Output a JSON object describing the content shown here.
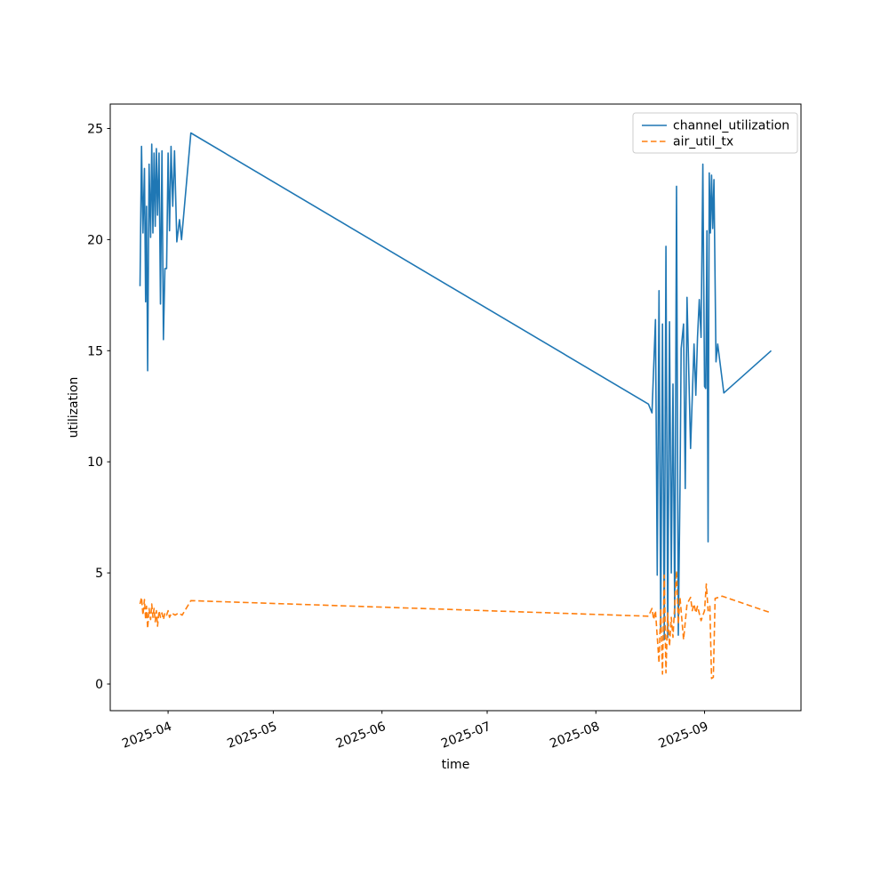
{
  "figure": {
    "background": "#ffffff"
  },
  "chart_data": {
    "type": "line",
    "title": "",
    "xlabel": "time",
    "ylabel": "utilization",
    "grid": false,
    "legend_position": "upper right",
    "xlim": [
      "2025-03-15T12:00",
      "2025-09-28T12:00"
    ],
    "ylim": [
      -1.2,
      26.1
    ],
    "x_ticks": [
      {
        "date": "2025-04-01T00:00",
        "label": "2025-04"
      },
      {
        "date": "2025-05-01T00:00",
        "label": "2025-05"
      },
      {
        "date": "2025-06-01T00:00",
        "label": "2025-06"
      },
      {
        "date": "2025-07-01T00:00",
        "label": "2025-07"
      },
      {
        "date": "2025-08-01T00:00",
        "label": "2025-08"
      },
      {
        "date": "2025-09-01T00:00",
        "label": "2025-09"
      }
    ],
    "y_ticks": [
      {
        "value": 0,
        "label": "0"
      },
      {
        "value": 5,
        "label": "5"
      },
      {
        "value": 10,
        "label": "10"
      },
      {
        "value": 15,
        "label": "15"
      },
      {
        "value": 20,
        "label": "20"
      },
      {
        "value": 25,
        "label": "25"
      }
    ],
    "series": [
      {
        "name": "channel_utilization",
        "color": "#1f77b4",
        "style": "solid",
        "points": [
          [
            "2025-03-24T00:00",
            17.9
          ],
          [
            "2025-03-24T10:00",
            24.2
          ],
          [
            "2025-03-24T20:00",
            20.3
          ],
          [
            "2025-03-25T06:00",
            23.2
          ],
          [
            "2025-03-25T14:00",
            17.2
          ],
          [
            "2025-03-25T20:00",
            21.5
          ],
          [
            "2025-03-26T04:00",
            14.1
          ],
          [
            "2025-03-26T14:00",
            23.4
          ],
          [
            "2025-03-27T00:00",
            20.1
          ],
          [
            "2025-03-27T08:00",
            24.3
          ],
          [
            "2025-03-27T16:00",
            20.3
          ],
          [
            "2025-03-28T00:00",
            23.9
          ],
          [
            "2025-03-28T08:00",
            20.6
          ],
          [
            "2025-03-28T16:00",
            24.1
          ],
          [
            "2025-03-29T00:00",
            21.1
          ],
          [
            "2025-03-29T10:00",
            23.9
          ],
          [
            "2025-03-29T20:00",
            17.1
          ],
          [
            "2025-03-30T06:00",
            24.0
          ],
          [
            "2025-03-30T16:00",
            15.5
          ],
          [
            "2025-03-31T02:00",
            18.7
          ],
          [
            "2025-03-31T14:00",
            18.7
          ],
          [
            "2025-04-01T00:00",
            23.9
          ],
          [
            "2025-04-01T10:00",
            20.4
          ],
          [
            "2025-04-01T20:00",
            24.2
          ],
          [
            "2025-04-02T08:00",
            21.5
          ],
          [
            "2025-04-02T20:00",
            24.0
          ],
          [
            "2025-04-03T12:00",
            19.9
          ],
          [
            "2025-04-04T06:00",
            20.9
          ],
          [
            "2025-04-04T20:00",
            20.0
          ],
          [
            "2025-04-07T12:00",
            24.8
          ],
          [
            "2025-08-16T00:00",
            12.6
          ],
          [
            "2025-08-17T00:00",
            12.2
          ],
          [
            "2025-08-18T00:00",
            16.4
          ],
          [
            "2025-08-18T12:00",
            4.9
          ],
          [
            "2025-08-19T00:00",
            17.7
          ],
          [
            "2025-08-19T12:00",
            2.4
          ],
          [
            "2025-08-20T00:00",
            16.2
          ],
          [
            "2025-08-20T12:00",
            2.0
          ],
          [
            "2025-08-21T00:00",
            19.7
          ],
          [
            "2025-08-21T12:00",
            2.1
          ],
          [
            "2025-08-22T00:00",
            16.3
          ],
          [
            "2025-08-22T12:00",
            5.0
          ],
          [
            "2025-08-23T00:00",
            13.5
          ],
          [
            "2025-08-23T12:00",
            3.0
          ],
          [
            "2025-08-24T00:00",
            22.4
          ],
          [
            "2025-08-24T12:00",
            2.2
          ],
          [
            "2025-08-25T00:00",
            8.8
          ],
          [
            "2025-08-25T08:00",
            15.1
          ],
          [
            "2025-08-26T00:00",
            16.2
          ],
          [
            "2025-08-26T12:00",
            8.8
          ],
          [
            "2025-08-27T00:00",
            17.4
          ],
          [
            "2025-08-28T00:00",
            10.6
          ],
          [
            "2025-08-29T00:00",
            15.3
          ],
          [
            "2025-08-29T12:00",
            13.0
          ],
          [
            "2025-08-30T00:00",
            15.6
          ],
          [
            "2025-08-30T12:00",
            17.3
          ],
          [
            "2025-08-31T00:00",
            15.6
          ],
          [
            "2025-08-31T12:00",
            23.4
          ],
          [
            "2025-09-01T00:00",
            13.4
          ],
          [
            "2025-09-01T08:00",
            13.3
          ],
          [
            "2025-09-01T16:00",
            20.4
          ],
          [
            "2025-09-02T00:00",
            6.4
          ],
          [
            "2025-09-02T08:00",
            23.0
          ],
          [
            "2025-09-02T16:00",
            20.3
          ],
          [
            "2025-09-03T00:00",
            22.9
          ],
          [
            "2025-09-03T08:00",
            20.5
          ],
          [
            "2025-09-03T16:00",
            22.7
          ],
          [
            "2025-09-04T06:00",
            14.5
          ],
          [
            "2025-09-04T18:00",
            15.3
          ],
          [
            "2025-09-06T12:00",
            13.1
          ],
          [
            "2025-09-20T00:00",
            15.0
          ]
        ]
      },
      {
        "name": "air_util_tx",
        "color": "#ff7f0e",
        "style": "dashed",
        "points": [
          [
            "2025-03-24T00:00",
            3.6
          ],
          [
            "2025-03-24T10:00",
            3.9
          ],
          [
            "2025-03-24T20:00",
            3.1
          ],
          [
            "2025-03-25T06:00",
            3.8
          ],
          [
            "2025-03-25T14:00",
            2.9
          ],
          [
            "2025-03-25T20:00",
            3.5
          ],
          [
            "2025-03-26T04:00",
            2.5
          ],
          [
            "2025-03-26T14:00",
            3.4
          ],
          [
            "2025-03-27T00:00",
            2.9
          ],
          [
            "2025-03-27T08:00",
            3.6
          ],
          [
            "2025-03-27T16:00",
            3.0
          ],
          [
            "2025-03-28T00:00",
            3.4
          ],
          [
            "2025-03-28T08:00",
            2.8
          ],
          [
            "2025-03-28T16:00",
            3.3
          ],
          [
            "2025-03-29T00:00",
            2.6
          ],
          [
            "2025-03-29T10:00",
            3.3
          ],
          [
            "2025-03-29T20:00",
            3.0
          ],
          [
            "2025-03-30T06:00",
            3.2
          ],
          [
            "2025-03-30T16:00",
            2.9
          ],
          [
            "2025-03-31T02:00",
            3.2
          ],
          [
            "2025-03-31T14:00",
            3.1
          ],
          [
            "2025-04-01T00:00",
            3.3
          ],
          [
            "2025-04-01T10:00",
            3.0
          ],
          [
            "2025-04-02T00:00",
            3.2
          ],
          [
            "2025-04-03T00:00",
            3.1
          ],
          [
            "2025-04-04T00:00",
            3.2
          ],
          [
            "2025-04-05T00:00",
            3.1
          ],
          [
            "2025-04-07T12:00",
            3.75
          ],
          [
            "2025-08-16T00:00",
            3.05
          ],
          [
            "2025-08-17T00:00",
            3.4
          ],
          [
            "2025-08-17T12:00",
            2.9
          ],
          [
            "2025-08-18T00:00",
            3.3
          ],
          [
            "2025-08-19T00:00",
            0.95
          ],
          [
            "2025-08-19T12:00",
            3.4
          ],
          [
            "2025-08-20T00:00",
            0.45
          ],
          [
            "2025-08-20T12:00",
            4.9
          ],
          [
            "2025-08-21T00:00",
            0.5
          ],
          [
            "2025-08-21T12:00",
            3.2
          ],
          [
            "2025-08-22T00:00",
            1.7
          ],
          [
            "2025-08-22T12:00",
            3.0
          ],
          [
            "2025-08-23T00:00",
            2.1
          ],
          [
            "2025-08-24T00:00",
            5.1
          ],
          [
            "2025-08-24T12:00",
            2.7
          ],
          [
            "2025-08-25T00:00",
            3.9
          ],
          [
            "2025-08-26T00:00",
            2.0
          ],
          [
            "2025-08-27T00:00",
            3.6
          ],
          [
            "2025-08-28T00:00",
            3.9
          ],
          [
            "2025-08-28T12:00",
            3.3
          ],
          [
            "2025-08-29T00:00",
            3.6
          ],
          [
            "2025-08-29T12:00",
            3.2
          ],
          [
            "2025-08-30T00:00",
            3.5
          ],
          [
            "2025-08-31T00:00",
            2.85
          ],
          [
            "2025-09-01T00:00",
            3.3
          ],
          [
            "2025-09-01T12:00",
            4.5
          ],
          [
            "2025-09-02T00:00",
            3.3
          ],
          [
            "2025-09-02T12:00",
            3.5
          ],
          [
            "2025-09-03T00:00",
            0.25
          ],
          [
            "2025-09-03T12:00",
            0.3
          ],
          [
            "2025-09-04T00:00",
            3.85
          ],
          [
            "2025-09-06T00:00",
            3.95
          ],
          [
            "2025-09-20T00:00",
            3.2
          ]
        ]
      }
    ]
  }
}
